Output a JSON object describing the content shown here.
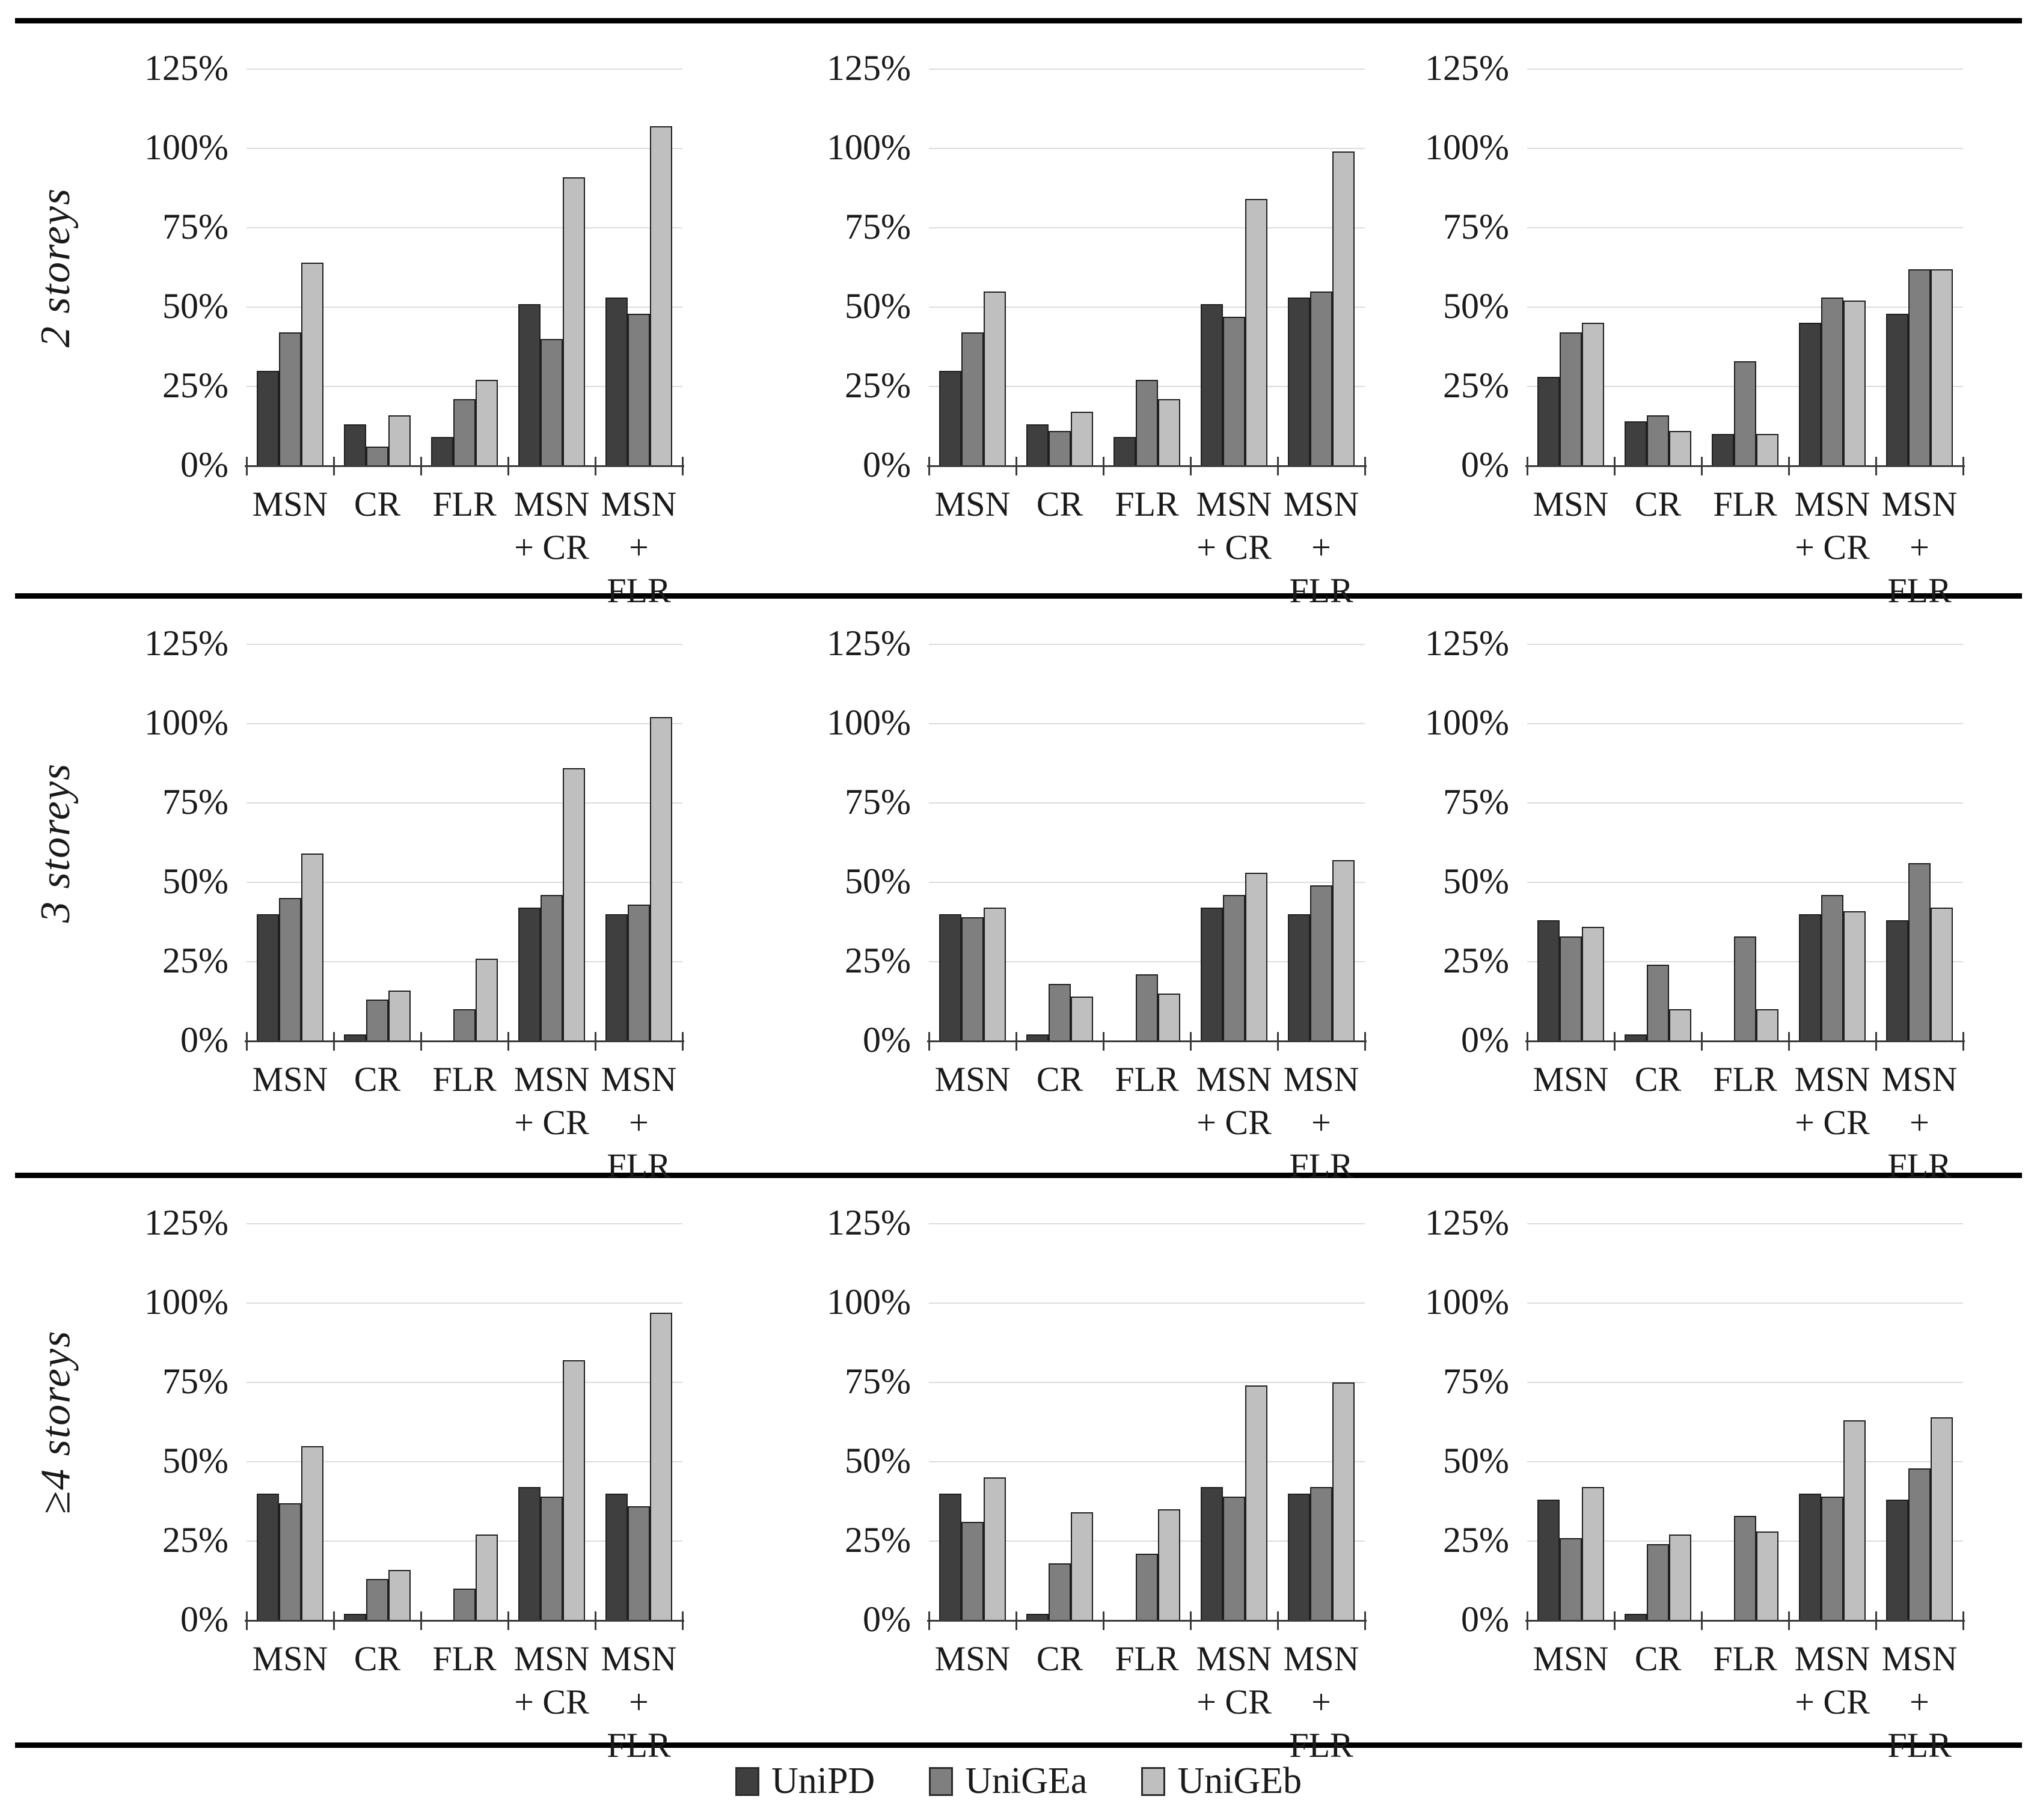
{
  "figure": {
    "row_labels": [
      "2 storeys",
      "3 storeys",
      "≥4 storeys"
    ],
    "y_ticks": [
      "125%",
      "100%",
      "75%",
      "50%",
      "25%",
      "0%"
    ],
    "categories_display": [
      [
        "MSN"
      ],
      [
        "CR"
      ],
      [
        "FLR"
      ],
      [
        "MSN",
        "+ CR"
      ],
      [
        "MSN",
        "+ FLR"
      ]
    ],
    "series_names": [
      "UniPD",
      "UniGEa",
      "UniGEb"
    ],
    "series_colors": [
      "#3f3f3f",
      "#7f7f7f",
      "#bfbfbf"
    ],
    "gridline_color": "#dcdcdc",
    "axis_color": "#3a3a3a",
    "rule_color": "#000000"
  },
  "legend": {
    "items": [
      {
        "label": "UniPD",
        "color": "#3f3f3f"
      },
      {
        "label": "UniGEa",
        "color": "#7f7f7f"
      },
      {
        "label": "UniGEb",
        "color": "#bfbfbf"
      }
    ]
  },
  "chart_data": [
    {
      "type": "bar",
      "row": "2 storeys",
      "position": "left",
      "categories": [
        "MSN",
        "CR",
        "FLR",
        "MSN + CR",
        "MSN + FLR"
      ],
      "ylim": [
        0,
        125
      ],
      "yticks_pct": [
        0,
        25,
        50,
        75,
        100,
        125
      ],
      "grid": true,
      "legend_position": "bottom-shared",
      "series": [
        {
          "name": "UniPD",
          "values": [
            30,
            13,
            9,
            51,
            53
          ]
        },
        {
          "name": "UniGEa",
          "values": [
            42,
            6,
            21,
            40,
            48
          ]
        },
        {
          "name": "UniGEb",
          "values": [
            64,
            16,
            27,
            91,
            107
          ]
        }
      ]
    },
    {
      "type": "bar",
      "row": "2 storeys",
      "position": "center",
      "categories": [
        "MSN",
        "CR",
        "FLR",
        "MSN + CR",
        "MSN + FLR"
      ],
      "ylim": [
        0,
        125
      ],
      "yticks_pct": [
        0,
        25,
        50,
        75,
        100,
        125
      ],
      "grid": true,
      "legend_position": "bottom-shared",
      "series": [
        {
          "name": "UniPD",
          "values": [
            30,
            13,
            9,
            51,
            53
          ]
        },
        {
          "name": "UniGEa",
          "values": [
            42,
            11,
            27,
            47,
            55
          ]
        },
        {
          "name": "UniGEb",
          "values": [
            55,
            17,
            21,
            84,
            99
          ]
        }
      ]
    },
    {
      "type": "bar",
      "row": "2 storeys",
      "position": "right",
      "categories": [
        "MSN",
        "CR",
        "FLR",
        "MSN + CR",
        "MSN + FLR"
      ],
      "ylim": [
        0,
        125
      ],
      "yticks_pct": [
        0,
        25,
        50,
        75,
        100,
        125
      ],
      "grid": true,
      "legend_position": "bottom-shared",
      "series": [
        {
          "name": "UniPD",
          "values": [
            28,
            14,
            10,
            45,
            48
          ]
        },
        {
          "name": "UniGEa",
          "values": [
            42,
            16,
            33,
            53,
            62
          ]
        },
        {
          "name": "UniGEb",
          "values": [
            45,
            11,
            10,
            52,
            62
          ]
        }
      ]
    },
    {
      "type": "bar",
      "row": "3 storeys",
      "position": "left",
      "categories": [
        "MSN",
        "CR",
        "FLR",
        "MSN + CR",
        "MSN + FLR"
      ],
      "ylim": [
        0,
        125
      ],
      "yticks_pct": [
        0,
        25,
        50,
        75,
        100,
        125
      ],
      "grid": true,
      "legend_position": "bottom-shared",
      "series": [
        {
          "name": "UniPD",
          "values": [
            40,
            2,
            0,
            42,
            40
          ]
        },
        {
          "name": "UniGEa",
          "values": [
            45,
            13,
            10,
            46,
            43
          ]
        },
        {
          "name": "UniGEb",
          "values": [
            59,
            16,
            26,
            86,
            102
          ]
        }
      ]
    },
    {
      "type": "bar",
      "row": "3 storeys",
      "position": "center",
      "categories": [
        "MSN",
        "CR",
        "FLR",
        "MSN + CR",
        "MSN + FLR"
      ],
      "ylim": [
        0,
        125
      ],
      "yticks_pct": [
        0,
        25,
        50,
        75,
        100,
        125
      ],
      "grid": true,
      "legend_position": "bottom-shared",
      "series": [
        {
          "name": "UniPD",
          "values": [
            40,
            2,
            0,
            42,
            40
          ]
        },
        {
          "name": "UniGEa",
          "values": [
            39,
            18,
            21,
            46,
            49
          ]
        },
        {
          "name": "UniGEb",
          "values": [
            42,
            14,
            15,
            53,
            57
          ]
        }
      ]
    },
    {
      "type": "bar",
      "row": "3 storeys",
      "position": "right",
      "categories": [
        "MSN",
        "CR",
        "FLR",
        "MSN + CR",
        "MSN + FLR"
      ],
      "ylim": [
        0,
        125
      ],
      "yticks_pct": [
        0,
        25,
        50,
        75,
        100,
        125
      ],
      "grid": true,
      "legend_position": "bottom-shared",
      "series": [
        {
          "name": "UniPD",
          "values": [
            38,
            2,
            0,
            40,
            38
          ]
        },
        {
          "name": "UniGEa",
          "values": [
            33,
            24,
            33,
            46,
            56
          ]
        },
        {
          "name": "UniGEb",
          "values": [
            36,
            10,
            10,
            41,
            42
          ]
        }
      ]
    },
    {
      "type": "bar",
      "row": "≥4 storeys",
      "position": "left",
      "categories": [
        "MSN",
        "CR",
        "FLR",
        "MSN + CR",
        "MSN + FLR"
      ],
      "ylim": [
        0,
        125
      ],
      "yticks_pct": [
        0,
        25,
        50,
        75,
        100,
        125
      ],
      "grid": true,
      "legend_position": "bottom-shared",
      "series": [
        {
          "name": "UniPD",
          "values": [
            40,
            2,
            0,
            42,
            40
          ]
        },
        {
          "name": "UniGEa",
          "values": [
            37,
            13,
            10,
            39,
            36
          ]
        },
        {
          "name": "UniGEb",
          "values": [
            55,
            16,
            27,
            82,
            97
          ]
        }
      ]
    },
    {
      "type": "bar",
      "row": "≥4 storeys",
      "position": "center",
      "categories": [
        "MSN",
        "CR",
        "FLR",
        "MSN + CR",
        "MSN + FLR"
      ],
      "ylim": [
        0,
        125
      ],
      "yticks_pct": [
        0,
        25,
        50,
        75,
        100,
        125
      ],
      "grid": true,
      "legend_position": "bottom-shared",
      "series": [
        {
          "name": "UniPD",
          "values": [
            40,
            2,
            0,
            42,
            40
          ]
        },
        {
          "name": "UniGEa",
          "values": [
            31,
            18,
            21,
            39,
            42
          ]
        },
        {
          "name": "UniGEb",
          "values": [
            45,
            34,
            35,
            74,
            75
          ]
        }
      ]
    },
    {
      "type": "bar",
      "row": "≥4 storeys",
      "position": "right",
      "categories": [
        "MSN",
        "CR",
        "FLR",
        "MSN + CR",
        "MSN + FLR"
      ],
      "ylim": [
        0,
        125
      ],
      "yticks_pct": [
        0,
        25,
        50,
        75,
        100,
        125
      ],
      "grid": true,
      "legend_position": "bottom-shared",
      "series": [
        {
          "name": "UniPD",
          "values": [
            38,
            2,
            0,
            40,
            38
          ]
        },
        {
          "name": "UniGEa",
          "values": [
            26,
            24,
            33,
            39,
            48
          ]
        },
        {
          "name": "UniGEb",
          "values": [
            42,
            27,
            28,
            63,
            64
          ]
        }
      ]
    }
  ]
}
